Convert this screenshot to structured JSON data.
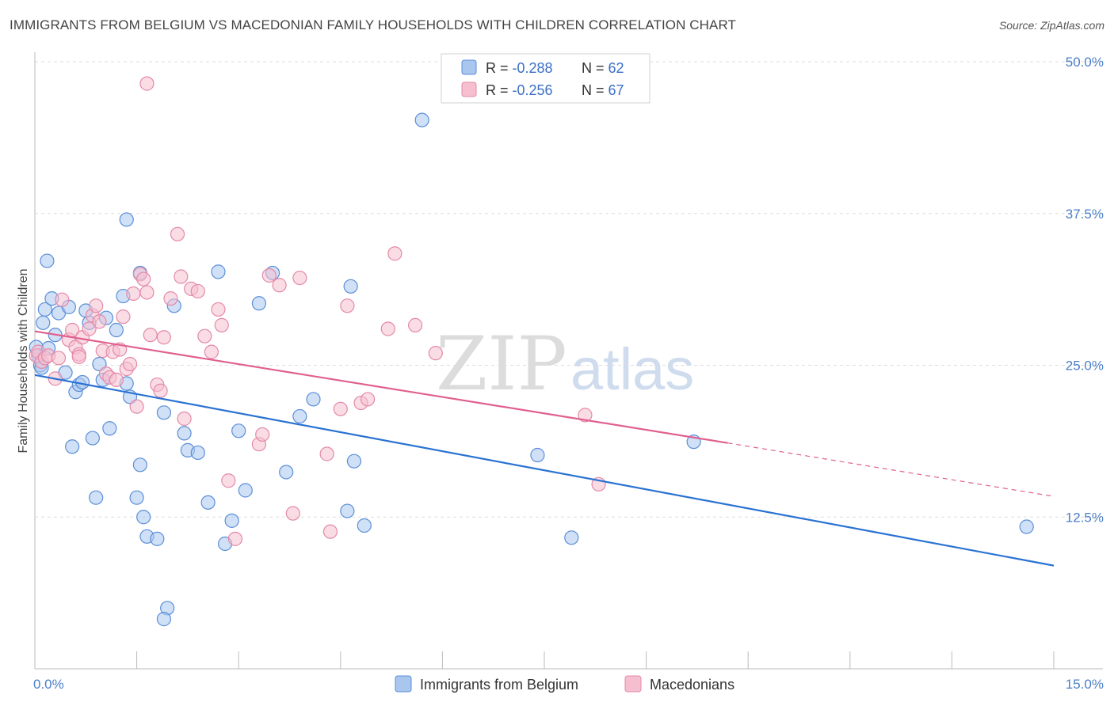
{
  "header": {
    "title": "IMMIGRANTS FROM BELGIUM VS MACEDONIAN FAMILY HOUSEHOLDS WITH CHILDREN CORRELATION CHART",
    "source": "Source: ZipAtlas.com"
  },
  "watermark": {
    "zip": "ZIP",
    "atlas": "atlas"
  },
  "chart_data": {
    "type": "scatter",
    "xlabel": "",
    "ylabel": "Family Households with Children",
    "xlim": [
      0,
      15
    ],
    "ylim": [
      0,
      50
    ],
    "x_tick_labels": [
      "0.0%",
      "15.0%"
    ],
    "y_ticks": [
      12.5,
      25.0,
      37.5,
      50.0
    ],
    "y_tick_labels": [
      "12.5%",
      "25.0%",
      "37.5%",
      "50.0%"
    ],
    "grid": "horizontal-dashed",
    "legend": {
      "placement": "top-center",
      "rows": [
        {
          "r_label": "R = ",
          "r_value": "-0.288",
          "n_label": "N = ",
          "n_value": "62"
        },
        {
          "r_label": "R = ",
          "r_value": "-0.256",
          "n_label": "N = ",
          "n_value": "67"
        }
      ]
    },
    "series": [
      {
        "name": "Immigrants from Belgium",
        "color": "#5b8fd8",
        "fill": "#a9c6ef",
        "trend_color": "#2a72d2",
        "trend": {
          "x0": 0,
          "y0": 24.2,
          "x1": 15,
          "y1": 8.5
        },
        "points": [
          [
            0.02,
            26.5
          ],
          [
            0.05,
            25.8
          ],
          [
            0.08,
            25.0
          ],
          [
            0.1,
            24.8
          ],
          [
            0.12,
            28.5
          ],
          [
            0.15,
            29.6
          ],
          [
            0.18,
            33.6
          ],
          [
            0.2,
            26.4
          ],
          [
            0.25,
            30.5
          ],
          [
            0.3,
            27.5
          ],
          [
            0.35,
            29.3
          ],
          [
            0.45,
            24.4
          ],
          [
            0.5,
            29.8
          ],
          [
            0.55,
            18.3
          ],
          [
            0.6,
            22.8
          ],
          [
            0.65,
            23.4
          ],
          [
            0.7,
            23.6
          ],
          [
            0.75,
            29.5
          ],
          [
            0.8,
            28.5
          ],
          [
            0.85,
            19.0
          ],
          [
            0.9,
            14.1
          ],
          [
            0.95,
            25.1
          ],
          [
            1.0,
            23.8
          ],
          [
            1.05,
            28.9
          ],
          [
            1.1,
            19.8
          ],
          [
            1.2,
            27.9
          ],
          [
            1.3,
            30.7
          ],
          [
            1.35,
            23.5
          ],
          [
            1.4,
            22.4
          ],
          [
            1.5,
            14.1
          ],
          [
            1.55,
            16.8
          ],
          [
            1.6,
            12.5
          ],
          [
            1.65,
            10.9
          ],
          [
            1.35,
            37.0
          ],
          [
            1.55,
            32.6
          ],
          [
            1.8,
            10.7
          ],
          [
            1.9,
            21.1
          ],
          [
            1.95,
            5.0
          ],
          [
            1.9,
            4.1
          ],
          [
            2.05,
            29.9
          ],
          [
            2.2,
            19.4
          ],
          [
            2.25,
            18.0
          ],
          [
            2.4,
            17.8
          ],
          [
            2.55,
            13.7
          ],
          [
            2.7,
            32.7
          ],
          [
            2.8,
            10.3
          ],
          [
            2.9,
            12.2
          ],
          [
            3.0,
            19.6
          ],
          [
            3.1,
            14.7
          ],
          [
            3.3,
            30.1
          ],
          [
            3.5,
            32.6
          ],
          [
            3.7,
            16.2
          ],
          [
            3.9,
            20.8
          ],
          [
            4.1,
            22.2
          ],
          [
            4.6,
            13.0
          ],
          [
            4.65,
            31.5
          ],
          [
            4.7,
            17.1
          ],
          [
            4.85,
            11.8
          ],
          [
            5.7,
            45.2
          ],
          [
            7.4,
            17.6
          ],
          [
            7.9,
            10.8
          ],
          [
            9.7,
            18.7
          ],
          [
            14.6,
            11.7
          ]
        ]
      },
      {
        "name": "Macedonians",
        "color": "#e38aa9",
        "fill": "#f6bfd0",
        "trend_color": "#e0608f",
        "trend": {
          "x0": 0,
          "y0": 27.8,
          "x1": 10.2,
          "y1": 18.6
        },
        "trend_dashed": {
          "x0": 10.2,
          "y0": 18.6,
          "x1": 15,
          "y1": 14.2
        },
        "points": [
          [
            0.02,
            25.8
          ],
          [
            0.05,
            26.1
          ],
          [
            0.1,
            25.3
          ],
          [
            0.15,
            25.6
          ],
          [
            0.2,
            25.8
          ],
          [
            0.3,
            23.9
          ],
          [
            0.35,
            25.6
          ],
          [
            0.4,
            30.4
          ],
          [
            0.5,
            27.1
          ],
          [
            0.55,
            27.9
          ],
          [
            0.6,
            26.5
          ],
          [
            0.65,
            25.9
          ],
          [
            0.7,
            27.3
          ],
          [
            0.8,
            28.0
          ],
          [
            0.85,
            29.1
          ],
          [
            0.9,
            29.9
          ],
          [
            0.95,
            28.6
          ],
          [
            1.0,
            26.2
          ],
          [
            1.05,
            24.3
          ],
          [
            1.1,
            24.0
          ],
          [
            1.15,
            26.1
          ],
          [
            1.2,
            23.8
          ],
          [
            1.25,
            26.3
          ],
          [
            1.3,
            29.0
          ],
          [
            1.35,
            24.7
          ],
          [
            1.4,
            25.1
          ],
          [
            1.45,
            30.9
          ],
          [
            1.5,
            21.6
          ],
          [
            1.55,
            32.5
          ],
          [
            1.6,
            32.1
          ],
          [
            1.65,
            31.0
          ],
          [
            1.7,
            27.5
          ],
          [
            1.8,
            23.4
          ],
          [
            1.85,
            22.9
          ],
          [
            1.9,
            27.3
          ],
          [
            2.0,
            30.5
          ],
          [
            2.1,
            35.8
          ],
          [
            2.15,
            32.3
          ],
          [
            2.2,
            20.6
          ],
          [
            2.3,
            31.3
          ],
          [
            2.4,
            31.1
          ],
          [
            2.5,
            27.4
          ],
          [
            2.6,
            26.1
          ],
          [
            2.7,
            29.6
          ],
          [
            2.75,
            28.3
          ],
          [
            2.85,
            15.5
          ],
          [
            2.95,
            10.7
          ],
          [
            3.3,
            18.5
          ],
          [
            3.35,
            19.3
          ],
          [
            3.45,
            32.4
          ],
          [
            3.6,
            31.6
          ],
          [
            3.8,
            12.8
          ],
          [
            3.9,
            32.2
          ],
          [
            4.3,
            17.7
          ],
          [
            4.35,
            11.3
          ],
          [
            4.5,
            21.4
          ],
          [
            4.6,
            29.9
          ],
          [
            4.8,
            21.9
          ],
          [
            4.9,
            22.2
          ],
          [
            5.2,
            28.0
          ],
          [
            5.3,
            34.2
          ],
          [
            5.6,
            28.3
          ],
          [
            5.9,
            26.0
          ],
          [
            1.65,
            48.2
          ],
          [
            8.1,
            20.9
          ],
          [
            8.3,
            15.2
          ],
          [
            0.65,
            25.7
          ]
        ]
      }
    ]
  }
}
